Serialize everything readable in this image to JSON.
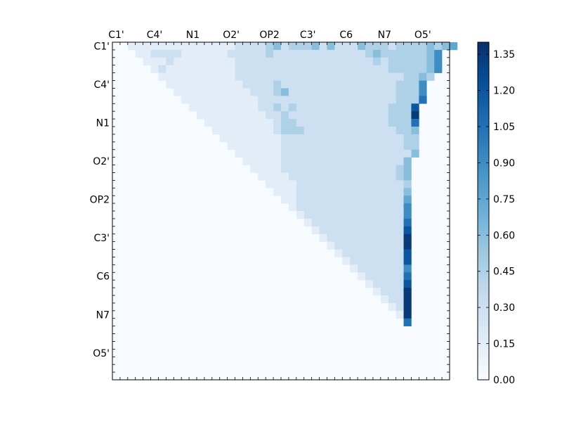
{
  "chart_data": {
    "type": "heatmap",
    "title": "",
    "xlabel": "",
    "ylabel": "",
    "x_tick_labels": [
      "C1'",
      "C4'",
      "N1",
      "O2'",
      "OP2",
      "C3'",
      "C6",
      "N7",
      "O5'"
    ],
    "y_tick_labels": [
      "C1'",
      "C4'",
      "N1",
      "O2'",
      "OP2",
      "C3'",
      "C6",
      "N7",
      "O5'"
    ],
    "colormap": "Blues",
    "colorbar": {
      "range": [
        0.0,
        1.4
      ],
      "tick_labels": [
        "0.00",
        "0.15",
        "0.30",
        "0.45",
        "0.60",
        "0.75",
        "0.90",
        "1.05",
        "1.20",
        "1.35"
      ],
      "tick_values": [
        0.0,
        0.15,
        0.3,
        0.45,
        0.6,
        0.75,
        0.9,
        1.05,
        1.2,
        1.35
      ]
    },
    "n_rows": 44,
    "n_cols": 44,
    "cells": [
      "  1111111111111122223423334242224333233334345",
      "   1122221111112222232222222222223433333346",
      "    111211111111222222222222222222323333346",
      "     12111111111222222222222222222223333346",
      "      111111111122222222222222222222223343",
      "       1111111111222232222222222222223336",
      "        111111111122234222222222222223336",
      "         11111111112222222222222222223337",
      "          111111111223232222222222223338",
      "           11111111122322222222222223339",
      "            1111111112332222222222223337",
      "             111111112333222222222222334",
      "              11111111222222222222222233",
      "               1111111222222222222222233",
      "                111111222222222222222224",
      "                 1111122222222222222224",
      "                  111122222222222222234",
      "                   11112222222222222234",
      "                    1111222222222222223",
      "                     111222222222222224",
      "                      11222222222222225",
      "                       1222222222222226",
      "                        122222222222226",
      "                         12222222222227",
      "                          1222222222228",
      "                           122222222229",
      "                            12222222229",
      "                             1222222228",
      "                              122222228",
      "                               12222226",
      "                                1222227",
      "                                 122228",
      "                                  12229",
      "                                   1229",
      "                                    129",
      "                                     19",
      "                                      7",
      "                                       ",
      "                                        ",
      "                                         ",
      "                                          ",
      "                                           ",
      "                                            ",
      "                                            "
    ],
    "cell_value_scale": 0.15
  }
}
